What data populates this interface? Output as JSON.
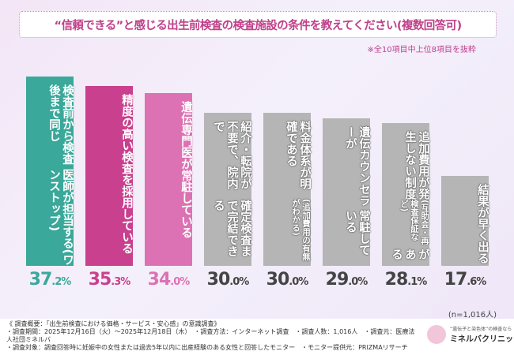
{
  "title": "“信頼できる”と感じる出生前検査の検査施設の条件を教えてください(複数回答可)",
  "note": "※全10項目中上位8項目を抜粋",
  "sample": "(n=1,016人)",
  "chart_data": {
    "type": "bar",
    "title": "“信頼できる”と感じる出生前検査の検査施設の条件を教えてください(複数回答可)",
    "unit": "%",
    "ylim": [
      0,
      40
    ],
    "grid": false,
    "categories": [
      {
        "lines": [
          "検査前から検査後まで同じ",
          "医師が担当する(ワンストップ)"
        ],
        "sub": ""
      },
      {
        "lines": [
          "精度の高い検査を",
          "採用している"
        ],
        "sub": ""
      },
      {
        "lines": [
          "遺伝専門医が常駐している"
        ],
        "sub": ""
      },
      {
        "lines": [
          "紹介・転院が不要で、院内で",
          "確定検査まで完結できる"
        ],
        "sub": ""
      },
      {
        "lines": [
          "料金体系が明確である"
        ],
        "sub": "(追加費用の有無がわかる)"
      },
      {
        "lines": [
          "遺伝カウンセラーが",
          "常駐している"
        ],
        "sub": ""
      },
      {
        "lines": [
          "追加費用が発生しない制度",
          "がある"
        ],
        "sub": "(互助会・再検査保証など)"
      },
      {
        "lines": [
          "結果が早く出る"
        ],
        "sub": ""
      }
    ],
    "values": [
      37.2,
      35.3,
      34.0,
      30.0,
      30.0,
      29.0,
      28.1,
      17.6
    ],
    "value_labels": [
      "37.2%",
      "35.3%",
      "34.0%",
      "30.0%",
      "30.0%",
      "29.0%",
      "28.1%",
      "17.6%"
    ],
    "colors": [
      "#3aa89a",
      "#c9408e",
      "#dc72b3",
      "#b5b5b5",
      "#b5b5b5",
      "#b5b5b5",
      "#b5b5b5",
      "#b5b5b5"
    ],
    "label_colors": [
      "#3aa89a",
      "#c9408e",
      "#dc72b3",
      "#444444",
      "#444444",
      "#444444",
      "#444444",
      "#444444"
    ]
  },
  "footer": {
    "lines": [
      "《 調査概要：「出生前検査における価格・サービス・安心感」の意識調査》",
      "・調査期間：2025年12月16日（火）～2025年12月18日（木）　・調査方法：インターネット調査　・調査人数：1,016人　・調査元：医療法人社団ミネルバ",
      "・調査対象：調査回答時に妊娠中の女性または過去5年以内に出産経験のある女性と回答したモニター　・モニター提供元：PRIZMAリサーチ"
    ],
    "logo_tagline": "“遺伝子と染色体”の検査なら",
    "logo_name": "ミネルバクリニック"
  }
}
